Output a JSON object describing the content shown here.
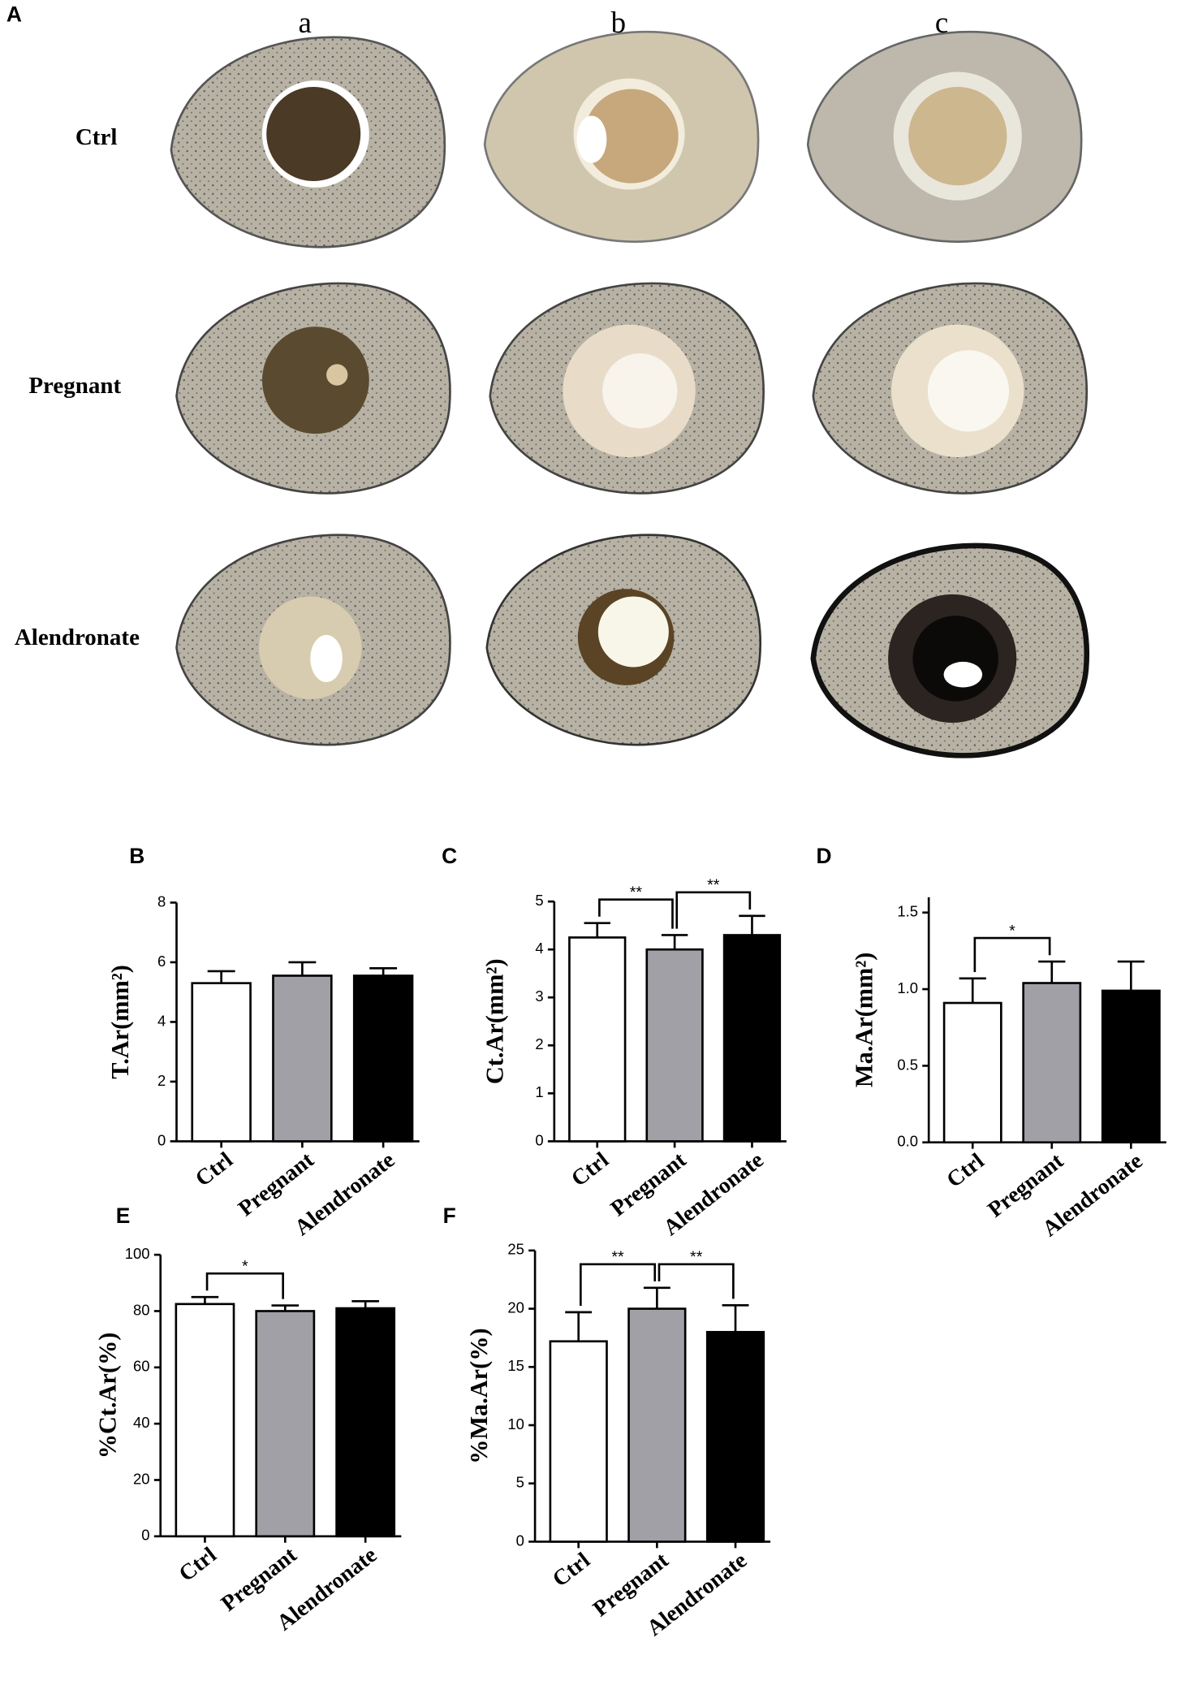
{
  "panel_a": {
    "panel": "A",
    "columns": [
      "a",
      "b",
      "c"
    ],
    "rows": [
      "Ctrl",
      "Pregnant",
      "Alendronate"
    ]
  },
  "chart_data": [
    {
      "type": "bar",
      "panel": "B",
      "ylabel": "T.Ar(mm²)",
      "categories": [
        "Ctrl",
        "Pregnant",
        "Alendronate"
      ],
      "colors": [
        "#ffffff",
        "#a0a0a6",
        "#000000"
      ],
      "values": [
        5.3,
        5.55,
        5.55
      ],
      "errors": [
        0.4,
        0.45,
        0.25
      ],
      "ylim": [
        0,
        8
      ],
      "yticks": [
        0,
        2,
        4,
        6,
        8
      ],
      "annotations": []
    },
    {
      "type": "bar",
      "panel": "C",
      "ylabel": "Ct.Ar(mm²)",
      "categories": [
        "Ctrl",
        "Pregnant",
        "Alendronate"
      ],
      "colors": [
        "#ffffff",
        "#a0a0a6",
        "#000000"
      ],
      "values": [
        4.25,
        4.0,
        4.3
      ],
      "errors": [
        0.3,
        0.3,
        0.4
      ],
      "ylim": [
        0,
        5
      ],
      "yticks": [
        0,
        1,
        2,
        3,
        4,
        5
      ],
      "annotations": [
        {
          "text": "**",
          "from": 0,
          "to": 1
        },
        {
          "text": "**",
          "from": 1,
          "to": 2
        }
      ]
    },
    {
      "type": "bar",
      "panel": "D",
      "ylabel": "Ma.Ar(mm²)",
      "categories": [
        "Ctrl",
        "Pregnant",
        "Alendronate"
      ],
      "colors": [
        "#ffffff",
        "#a0a0a6",
        "#000000"
      ],
      "values": [
        0.91,
        1.04,
        0.99
      ],
      "errors": [
        0.16,
        0.14,
        0.19
      ],
      "ylim": [
        0,
        1.6
      ],
      "yticks": [
        {
          "value": 0,
          "label": "0.0"
        },
        0.5,
        {
          "value": 1,
          "label": "1.0"
        },
        1.5
      ],
      "annotations": [
        {
          "text": "*",
          "from": 0,
          "to": 1
        }
      ]
    },
    {
      "type": "bar",
      "panel": "E",
      "ylabel": "%Ct.Ar(%)",
      "categories": [
        "Ctrl",
        "Pregnant",
        "Alendronate"
      ],
      "colors": [
        "#ffffff",
        "#a0a0a6",
        "#000000"
      ],
      "values": [
        82.5,
        80,
        81
      ],
      "errors": [
        2.5,
        2,
        2.5
      ],
      "ylim": [
        0,
        100
      ],
      "yticks": [
        0,
        20,
        40,
        60,
        80,
        100
      ],
      "annotations": [
        {
          "text": "*",
          "from": 0,
          "to": 1
        }
      ]
    },
    {
      "type": "bar",
      "panel": "F",
      "ylabel": "%Ma.Ar(%)",
      "categories": [
        "Ctrl",
        "Pregnant",
        "Alendronate"
      ],
      "colors": [
        "#ffffff",
        "#a0a0a6",
        "#000000"
      ],
      "values": [
        17.2,
        20,
        18
      ],
      "errors": [
        2.5,
        1.8,
        2.3
      ],
      "ylim": [
        0,
        25
      ],
      "yticks": [
        0,
        5,
        10,
        15,
        20,
        25
      ],
      "annotations": [
        {
          "text": "**",
          "from": 0,
          "to": 1
        },
        {
          "text": "**",
          "from": 1,
          "to": 2
        }
      ]
    }
  ]
}
